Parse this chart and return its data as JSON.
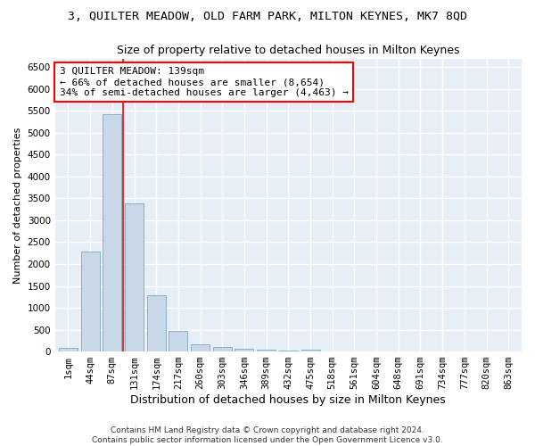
{
  "title": "3, QUILTER MEADOW, OLD FARM PARK, MILTON KEYNES, MK7 8QD",
  "subtitle": "Size of property relative to detached houses in Milton Keynes",
  "xlabel": "Distribution of detached houses by size in Milton Keynes",
  "ylabel": "Number of detached properties",
  "footer_line1": "Contains HM Land Registry data © Crown copyright and database right 2024.",
  "footer_line2": "Contains public sector information licensed under the Open Government Licence v3.0.",
  "bar_labels": [
    "1sqm",
    "44sqm",
    "87sqm",
    "131sqm",
    "174sqm",
    "217sqm",
    "260sqm",
    "303sqm",
    "346sqm",
    "389sqm",
    "432sqm",
    "475sqm",
    "518sqm",
    "561sqm",
    "604sqm",
    "648sqm",
    "691sqm",
    "734sqm",
    "777sqm",
    "820sqm",
    "863sqm"
  ],
  "bar_values": [
    75,
    2280,
    5430,
    3380,
    1290,
    480,
    165,
    100,
    60,
    35,
    20,
    50,
    10,
    5,
    3,
    2,
    2,
    2,
    1,
    1,
    1
  ],
  "bar_color": "#c8d8e8",
  "bar_edge_color": "#7aaabb",
  "annotation_text": "3 QUILTER MEADOW: 139sqm\n← 66% of detached houses are smaller (8,654)\n34% of semi-detached houses are larger (4,463) →",
  "annotation_box_facecolor": "white",
  "annotation_box_edgecolor": "red",
  "vline_x": 2.5,
  "vline_color": "red",
  "ylim": [
    0,
    6700
  ],
  "yticks": [
    0,
    500,
    1000,
    1500,
    2000,
    2500,
    3000,
    3500,
    4000,
    4500,
    5000,
    5500,
    6000,
    6500
  ],
  "plot_bg_color": "#e8eef5",
  "figure_bg_color": "#ffffff",
  "title_fontsize": 9.5,
  "subtitle_fontsize": 9,
  "xlabel_fontsize": 9,
  "ylabel_fontsize": 8,
  "tick_fontsize": 7.5,
  "annotation_fontsize": 8,
  "footer_fontsize": 6.5,
  "grid_color": "#ffffff",
  "grid_linewidth": 1.0
}
